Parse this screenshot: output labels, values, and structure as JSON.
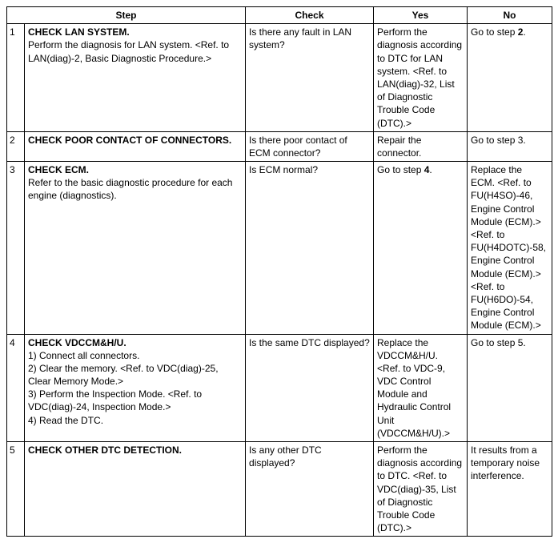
{
  "headers": {
    "step": "Step",
    "check": "Check",
    "yes": "Yes",
    "no": "No"
  },
  "rows": {
    "r1": {
      "num": "1",
      "title": "CHECK LAN SYSTEM.",
      "body1": "Perform the diagnosis for LAN system. <Ref. to LAN(diag)-2, Basic Diagnostic Procedure.>",
      "check": "Is there any fault in LAN system?",
      "yes": "Perform the diagnosis according to DTC for LAN system. <Ref. to LAN(diag)-32, List of Diagnostic Trouble Code (DTC).>",
      "no_pre": "Go to step ",
      "no_bold": "2",
      "no_post": "."
    },
    "r2": {
      "num": "2",
      "title": "CHECK POOR CONTACT OF CONNECTORS.",
      "check": "Is there poor contact of ECM connector?",
      "yes": "Repair the connector.",
      "no": "Go to step 3."
    },
    "r3": {
      "num": "3",
      "title": "CHECK ECM.",
      "body1": "Refer to the basic diagnostic procedure for each engine (diagnostics).",
      "check": "Is ECM normal?",
      "yes_pre": "Go to step ",
      "yes_bold": "4",
      "yes_post": ".",
      "no": "Replace the ECM. <Ref. to FU(H4SO)-46, Engine Control Module (ECM).> <Ref. to FU(H4DOTC)-58, Engine Control Module (ECM).> <Ref. to FU(H6DO)-54, Engine Control Module (ECM).>"
    },
    "r4": {
      "num": "4",
      "title": "CHECK VDCCM&H/U.",
      "l1": "1)  Connect all connectors.",
      "l2": "2)  Clear the memory. <Ref. to VDC(diag)-25, Clear Memory Mode.>",
      "l3": "3)  Perform the Inspection Mode. <Ref. to VDC(diag)-24, Inspection Mode.>",
      "l4": "4)  Read the DTC.",
      "check": "Is the same DTC displayed?",
      "yes": "Replace the VDCCM&H/U. <Ref. to VDC-9, VDC Control Module and Hydraulic Control Unit (VDCCM&H/U).>",
      "no": "Go to step 5."
    },
    "r5": {
      "num": "5",
      "title": "CHECK OTHER DTC DETECTION.",
      "check": "Is any other DTC displayed?",
      "yes": "Perform the diagnosis according to DTC. <Ref. to VDC(diag)-35, List of Diagnostic Trouble Code (DTC).>",
      "no": "It results from a temporary noise interference."
    }
  }
}
